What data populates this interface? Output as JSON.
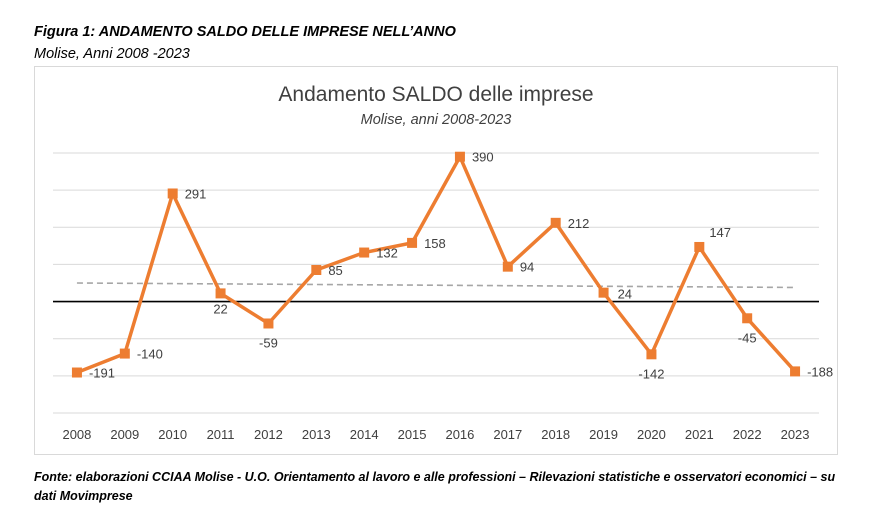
{
  "figure": {
    "title": "Figura 1: ANDAMENTO SALDO DELLE IMPRESE NELL’ANNO",
    "subtitle": "Molise, Anni 2008 -2023",
    "source": "Fonte: elaborazioni CCIAA Molise - U.O. Orientamento al lavoro e alle professioni – Rilevazioni statistiche e osservatori economici – su dati Movimprese"
  },
  "chart_data": {
    "type": "line",
    "title": "Andamento SALDO delle imprese",
    "subtitle": "Molise, anni 2008-2023",
    "categories": [
      "2008",
      "2009",
      "2010",
      "2011",
      "2012",
      "2013",
      "2014",
      "2015",
      "2016",
      "2017",
      "2018",
      "2019",
      "2020",
      "2021",
      "2022",
      "2023"
    ],
    "series": [
      {
        "values": [
          -191,
          -140,
          291,
          22,
          -59,
          85,
          132,
          158,
          390,
          94,
          212,
          24,
          -142,
          147,
          -45,
          -188
        ],
        "color": "#ED7D31",
        "marker": "square"
      }
    ],
    "trendline": {
      "style": "dashed",
      "color": "#A6A6A6",
      "start": 50,
      "end": 38
    },
    "ylim": [
      -300,
      400
    ],
    "grid": true,
    "data_labels": true,
    "legend": "none"
  }
}
